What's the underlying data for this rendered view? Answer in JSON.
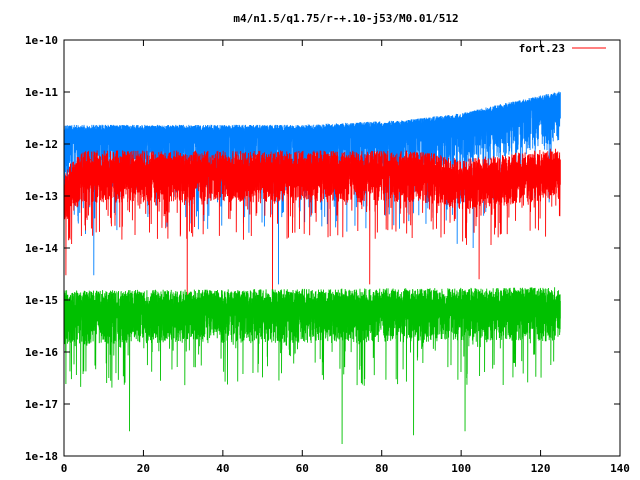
{
  "chart_data": {
    "type": "line",
    "title": "m4/n1.5/q1.75/r-+.10-j53/M0.01/512",
    "xlabel": "",
    "ylabel": "",
    "xlim": [
      0,
      140
    ],
    "ylim": [
      1e-18,
      1e-10
    ],
    "yscale": "log",
    "x_ticks": [
      "0",
      "20",
      "40",
      "60",
      "80",
      "100",
      "120",
      "140"
    ],
    "y_ticks": [
      "1e-18",
      "1e-17",
      "1e-16",
      "1e-15",
      "1e-14",
      "1e-13",
      "1e-12",
      "1e-11",
      "1e-10"
    ],
    "legend_position": "top-right",
    "grid": false,
    "x_end": 125,
    "series": [
      {
        "name": "fort.23",
        "color": "#ff0000",
        "trend": {
          "x": [
            0,
            1,
            5,
            40,
            90,
            100,
            110,
            125
          ],
          "y": [
            1e-13,
            1.5e-13,
            3e-13,
            3e-13,
            3e-13,
            2e-13,
            2.5e-13,
            3.5e-13
          ]
        },
        "spread": {
          "up": 2.5,
          "down_typical": 4,
          "down_min": 5e-15
        },
        "dips": [
          {
            "x": 0.5,
            "y": 3e-15
          },
          {
            "x": 23.5,
            "y": 1.5e-14
          },
          {
            "x": 31,
            "y": 1e-15
          },
          {
            "x": 52.5,
            "y": 1.1e-15
          },
          {
            "x": 77,
            "y": 2e-15
          },
          {
            "x": 104.5,
            "y": 2.5e-15
          }
        ]
      },
      {
        "name": "",
        "color": "#0080ff",
        "trend": {
          "x": [
            0,
            20,
            60,
            85,
            100,
            110,
            125
          ],
          "y": [
            1.8e-12,
            1.8e-12,
            1.8e-12,
            2.2e-12,
            3e-12,
            4.5e-12,
            8e-12
          ]
        },
        "spread": {
          "up": 1.3,
          "down_typical": 8,
          "down_min": 1e-15
        },
        "dips": [
          {
            "x": 7.5,
            "y": 3e-15
          },
          {
            "x": 54,
            "y": 2e-15
          },
          {
            "x": 99,
            "y": 1.2e-14
          },
          {
            "x": 103,
            "y": 1e-14
          }
        ]
      },
      {
        "name": "",
        "color": "#00c000",
        "trend": {
          "x": [
            0,
            125
          ],
          "y": [
            7e-16,
            8e-16
          ]
        },
        "spread": {
          "up": 2.2,
          "down_typical": 5,
          "down_min": 1e-17
        },
        "dips": [
          {
            "x": 16.5,
            "y": 3e-18
          },
          {
            "x": 70,
            "y": 1.7e-18
          },
          {
            "x": 88,
            "y": 2.5e-18
          },
          {
            "x": 101,
            "y": 3e-18
          }
        ]
      }
    ]
  }
}
